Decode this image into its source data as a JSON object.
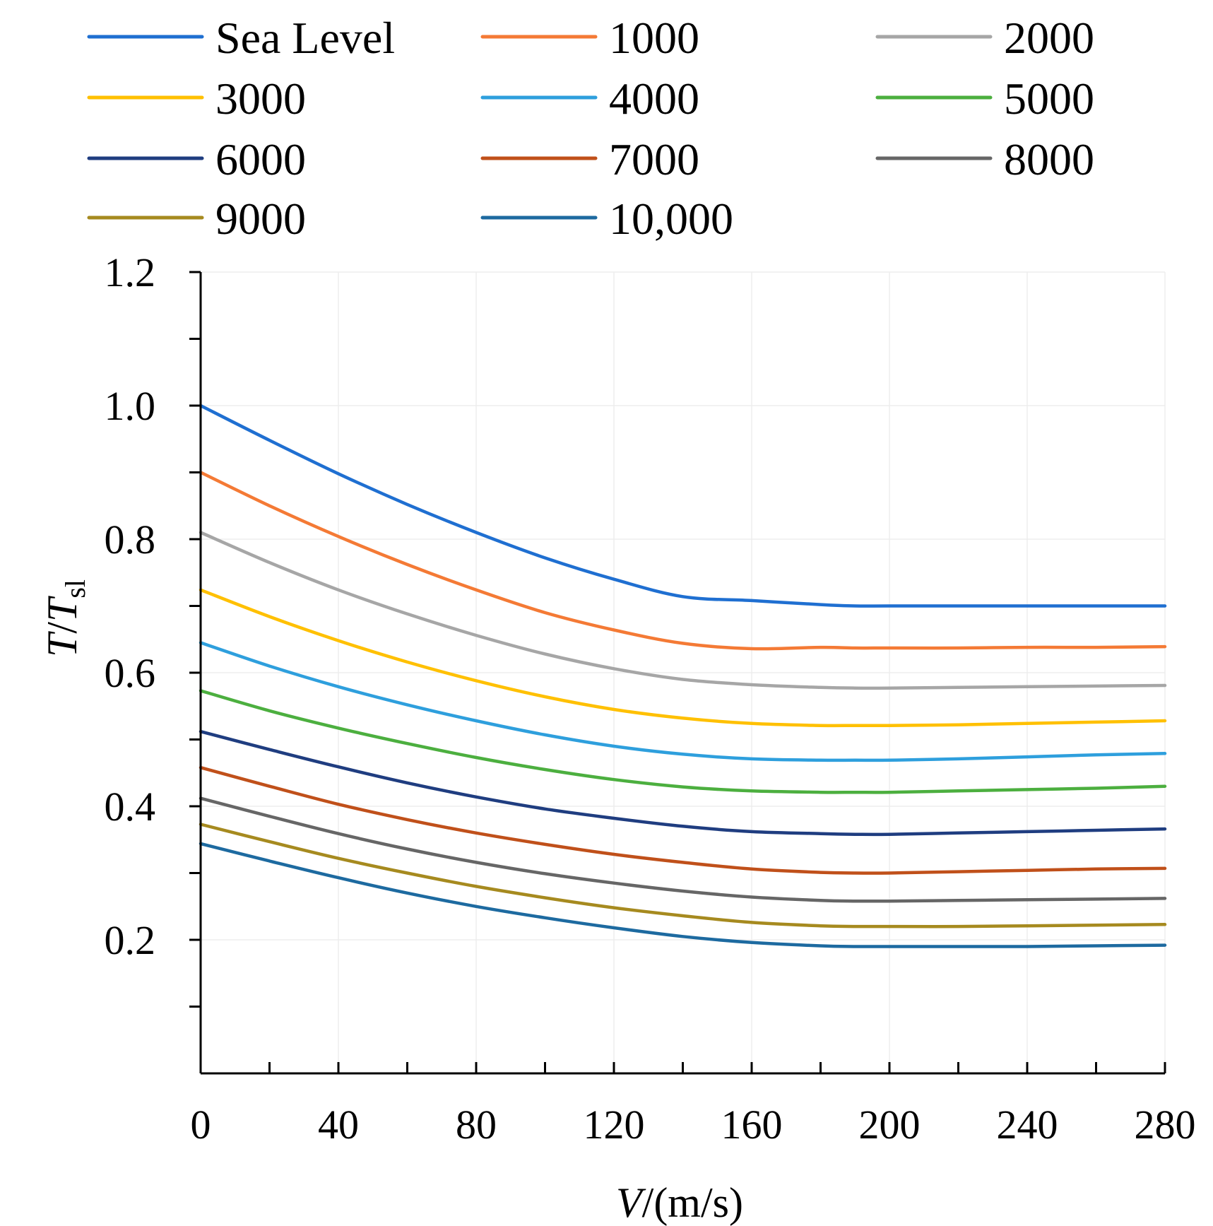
{
  "chart_data": {
    "type": "line",
    "title": "",
    "xlabel": {
      "italic": "V",
      "rest": "/(m/s)"
    },
    "ylabel": {
      "italic_main": "T",
      "slash": "/",
      "italic_sub_base": "T",
      "subscript": "sl"
    },
    "xlim": [
      0,
      280
    ],
    "ylim": [
      0,
      1.2
    ],
    "x_ticks": [
      {
        "value": 0,
        "label": "0"
      },
      {
        "value": 40,
        "label": "40"
      },
      {
        "value": 80,
        "label": "80"
      },
      {
        "value": 120,
        "label": "120"
      },
      {
        "value": 160,
        "label": "160"
      },
      {
        "value": 200,
        "label": "200"
      },
      {
        "value": 240,
        "label": "240"
      },
      {
        "value": 280,
        "label": "280"
      }
    ],
    "x_minor_step": 20,
    "y_ticks": [
      {
        "value": 0.2,
        "label": "0.2"
      },
      {
        "value": 0.4,
        "label": "0.4"
      },
      {
        "value": 0.6,
        "label": "0.6"
      },
      {
        "value": 0.8,
        "label": "0.8"
      },
      {
        "value": 1.0,
        "label": "1.0"
      },
      {
        "value": 1.2,
        "label": "1.2"
      }
    ],
    "y_minor_step": 0.1,
    "grid": true,
    "legend_position": "top",
    "x": [
      0,
      20,
      40,
      60,
      80,
      100,
      120,
      140,
      160,
      180,
      190,
      200,
      220,
      240,
      260,
      280
    ],
    "series": [
      {
        "name": "Sea Level",
        "color": "#1f6fd1",
        "values": [
          1.0,
          0.948,
          0.898,
          0.852,
          0.81,
          0.772,
          0.74,
          0.714,
          0.708,
          0.702,
          0.7,
          0.7,
          0.7,
          0.7,
          0.7,
          0.7
        ]
      },
      {
        "name": "1000",
        "color": "#f47a35",
        "values": [
          0.9,
          0.85,
          0.804,
          0.762,
          0.724,
          0.69,
          0.664,
          0.644,
          0.636,
          0.638,
          0.637,
          0.637,
          0.637,
          0.638,
          0.638,
          0.639
        ]
      },
      {
        "name": "2000",
        "color": "#a6a6a6",
        "values": [
          0.81,
          0.765,
          0.724,
          0.688,
          0.656,
          0.628,
          0.606,
          0.59,
          0.582,
          0.578,
          0.577,
          0.577,
          0.578,
          0.579,
          0.58,
          0.581
        ]
      },
      {
        "name": "3000",
        "color": "#ffc000",
        "values": [
          0.724,
          0.684,
          0.648,
          0.616,
          0.588,
          0.564,
          0.545,
          0.532,
          0.524,
          0.521,
          0.521,
          0.521,
          0.522,
          0.524,
          0.526,
          0.528
        ]
      },
      {
        "name": "4000",
        "color": "#2e9fdd",
        "values": [
          0.645,
          0.61,
          0.579,
          0.552,
          0.528,
          0.507,
          0.49,
          0.478,
          0.471,
          0.469,
          0.469,
          0.469,
          0.471,
          0.474,
          0.477,
          0.479
        ]
      },
      {
        "name": "5000",
        "color": "#4caf3f",
        "values": [
          0.573,
          0.543,
          0.517,
          0.494,
          0.473,
          0.455,
          0.44,
          0.429,
          0.423,
          0.421,
          0.421,
          0.421,
          0.423,
          0.425,
          0.427,
          0.43
        ]
      },
      {
        "name": "6000",
        "color": "#1f3d80",
        "values": [
          0.512,
          0.485,
          0.459,
          0.435,
          0.414,
          0.396,
          0.382,
          0.37,
          0.362,
          0.359,
          0.358,
          0.358,
          0.36,
          0.362,
          0.364,
          0.366
        ]
      },
      {
        "name": "7000",
        "color": "#c0501a",
        "values": [
          0.458,
          0.43,
          0.403,
          0.38,
          0.36,
          0.343,
          0.328,
          0.316,
          0.306,
          0.301,
          0.3,
          0.3,
          0.302,
          0.304,
          0.306,
          0.307
        ]
      },
      {
        "name": "8000",
        "color": "#666666",
        "values": [
          0.412,
          0.385,
          0.359,
          0.336,
          0.316,
          0.299,
          0.285,
          0.273,
          0.264,
          0.259,
          0.258,
          0.258,
          0.259,
          0.26,
          0.261,
          0.262
        ]
      },
      {
        "name": "9000",
        "color": "#a68a1f",
        "values": [
          0.373,
          0.347,
          0.322,
          0.3,
          0.28,
          0.263,
          0.248,
          0.236,
          0.226,
          0.221,
          0.22,
          0.22,
          0.22,
          0.221,
          0.222,
          0.223
        ]
      },
      {
        "name": "10,000",
        "color": "#1d6aa0",
        "values": [
          0.344,
          0.318,
          0.293,
          0.27,
          0.25,
          0.233,
          0.218,
          0.205,
          0.196,
          0.191,
          0.19,
          0.19,
          0.19,
          0.19,
          0.191,
          0.192
        ]
      }
    ]
  }
}
